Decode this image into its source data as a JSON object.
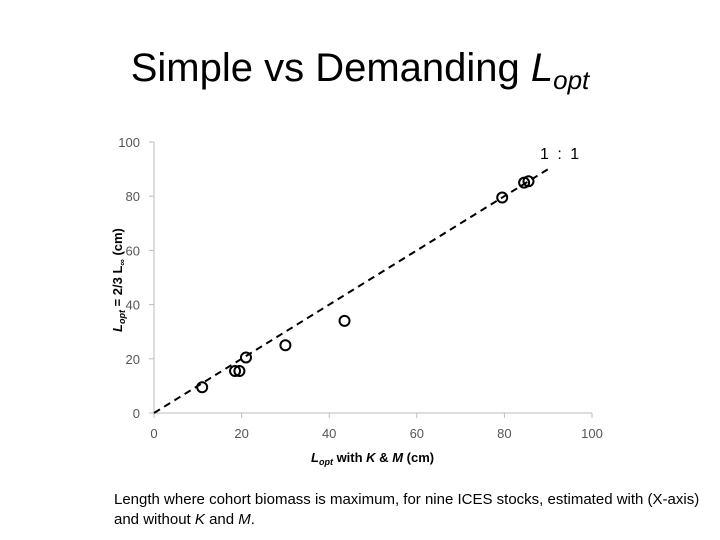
{
  "title": {
    "main": "Simple vs Demanding ",
    "italic": "L",
    "subscript": "opt"
  },
  "caption": {
    "part1": "Length where cohort biomass is maximum, for nine ICES stocks, estimated with (X-axis) and without ",
    "k": "K",
    "and": " and ",
    "m": "M",
    "end": "."
  },
  "chart_data": {
    "type": "scatter",
    "xlim": [
      0,
      100
    ],
    "ylim": [
      0,
      100
    ],
    "xticks": [
      "0",
      "20",
      "40",
      "60",
      "80",
      "100"
    ],
    "yticks": [
      "0",
      "20",
      "40",
      "60",
      "80",
      "100"
    ],
    "xlabel": {
      "l": "L",
      "sub": "opt",
      "rest": " with ",
      "k": "K",
      "amp": " & ",
      "m": "M",
      "unit": " (cm)"
    },
    "ylabel": {
      "l": "L",
      "sub": "opt",
      "rest": " = 2/3 L",
      "inf": "∞",
      "unit": " (cm)"
    },
    "reference_line": {
      "label": "1 : 1",
      "from": [
        0,
        0
      ],
      "to": [
        90,
        90
      ]
    },
    "grid": false,
    "points": [
      {
        "x": 11,
        "y": 9.5
      },
      {
        "x": 18.5,
        "y": 15.5
      },
      {
        "x": 19.5,
        "y": 15.5
      },
      {
        "x": 21,
        "y": 20.5
      },
      {
        "x": 30,
        "y": 25
      },
      {
        "x": 43.5,
        "y": 34
      },
      {
        "x": 79.5,
        "y": 79.5
      },
      {
        "x": 84.5,
        "y": 85
      },
      {
        "x": 85.5,
        "y": 85.5
      }
    ]
  }
}
